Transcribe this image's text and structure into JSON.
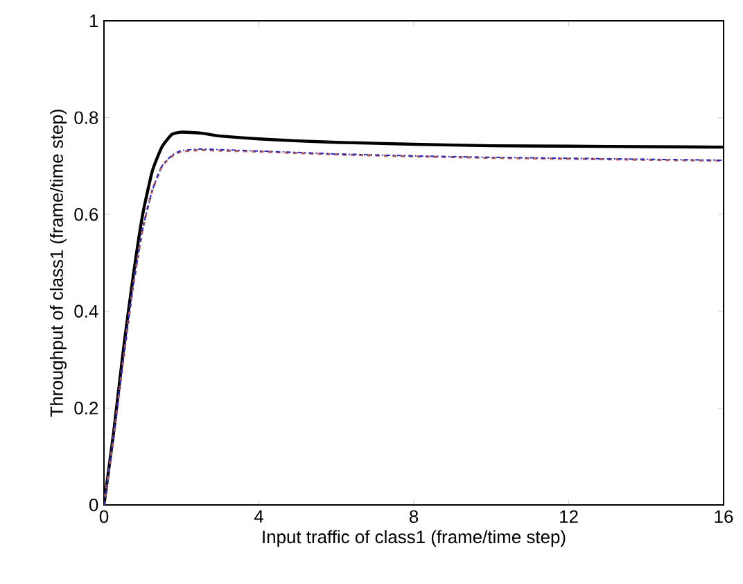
{
  "chart_data": {
    "type": "line",
    "xlabel": "Input traffic of class1 (frame/time step)",
    "ylabel": "Throughput of class1 (frame/time step)",
    "xlim": [
      0,
      16
    ],
    "ylim": [
      0,
      1
    ],
    "xticks": [
      0,
      4,
      8,
      12,
      16
    ],
    "yticks": [
      0,
      {
        "value": 0.2,
        "label": "0.2"
      },
      {
        "value": 0.4,
        "label": "0.4"
      },
      {
        "value": 0.6,
        "label": "0.6"
      },
      {
        "value": 0.8,
        "label": "0.8"
      },
      1
    ],
    "x": [
      0,
      0.25,
      0.5,
      0.75,
      1,
      1.25,
      1.5,
      1.75,
      2,
      2.5,
      3,
      4,
      5,
      6,
      8,
      10,
      12,
      14,
      16
    ],
    "series": [
      {
        "color": "#000000",
        "line_style": "solid",
        "values": [
          0,
          0.15,
          0.32,
          0.47,
          0.6,
          0.69,
          0.74,
          0.765,
          0.77,
          0.768,
          0.762,
          0.756,
          0.752,
          0.749,
          0.745,
          0.742,
          0.741,
          0.74,
          0.739
        ]
      },
      {
        "color": "#b06060",
        "line_style": "dashed",
        "values": [
          0,
          0.14,
          0.3,
          0.45,
          0.57,
          0.65,
          0.7,
          0.72,
          0.73,
          0.733,
          0.732,
          0.73,
          0.727,
          0.724,
          0.72,
          0.717,
          0.715,
          0.713,
          0.711
        ]
      },
      {
        "color": "#2828c0",
        "line_style": "dotted",
        "values": [
          0,
          0.14,
          0.3,
          0.45,
          0.57,
          0.65,
          0.7,
          0.722,
          0.732,
          0.735,
          0.734,
          0.731,
          0.728,
          0.725,
          0.721,
          0.718,
          0.716,
          0.714,
          0.712
        ]
      }
    ]
  }
}
